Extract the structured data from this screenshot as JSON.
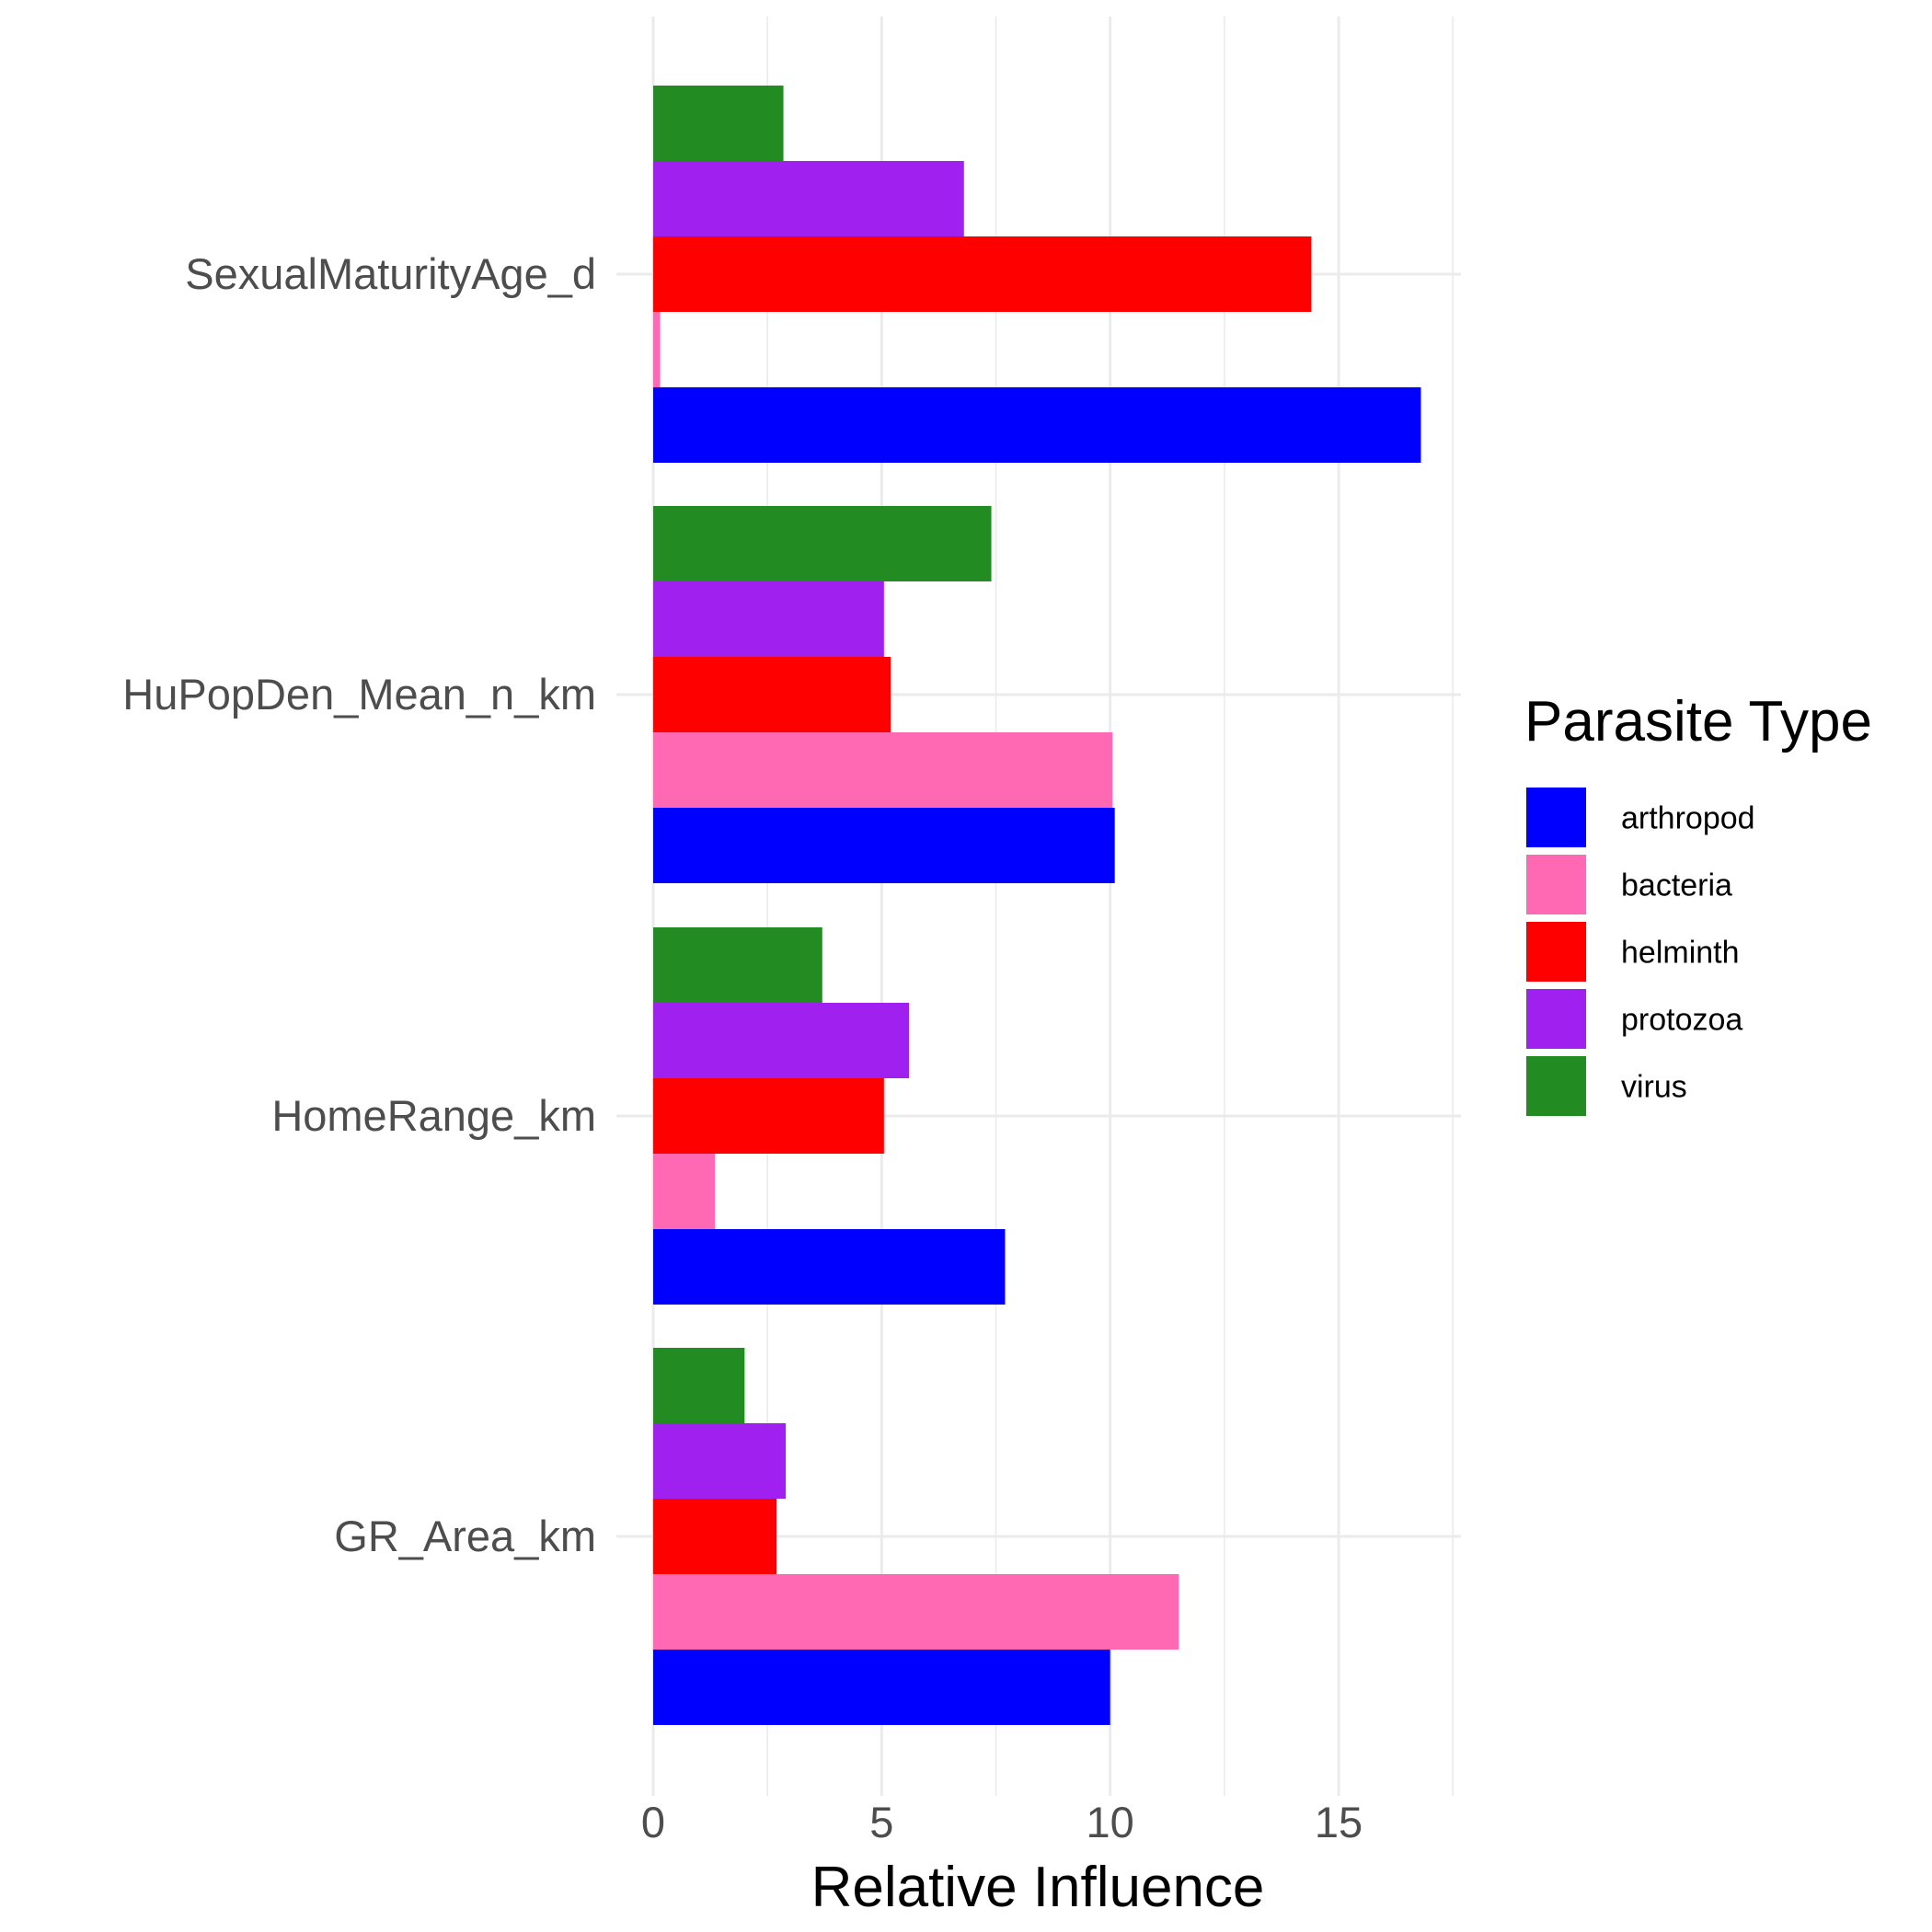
{
  "chart_data": {
    "type": "bar",
    "orientation": "horizontal",
    "categories": [
      "SexualMaturityAge_d",
      "HuPopDen_Mean_n_km",
      "HomeRange_km",
      "GR_Area_km"
    ],
    "series": [
      {
        "name": "arthropod",
        "color": "#0000FF",
        "values": [
          16.8,
          10.1,
          7.7,
          10.0
        ]
      },
      {
        "name": "bacteria",
        "color": "#FF69B4",
        "values": [
          0.15,
          10.05,
          1.35,
          11.5
        ]
      },
      {
        "name": "helminth",
        "color": "#FF0000",
        "values": [
          14.4,
          5.2,
          5.05,
          2.7
        ]
      },
      {
        "name": "protozoa",
        "color": "#A020F0",
        "values": [
          6.8,
          5.05,
          5.6,
          2.9
        ]
      },
      {
        "name": "virus",
        "color": "#228B22",
        "values": [
          2.85,
          7.4,
          3.7,
          2.0
        ]
      }
    ],
    "xlabel": "Relative Influence",
    "ylabel": "",
    "xlim": [
      0,
      17.6
    ],
    "x_ticks": [
      0,
      5,
      10,
      15
    ],
    "grid": true,
    "legend": {
      "title": "Parasite Type",
      "position": "right"
    }
  }
}
